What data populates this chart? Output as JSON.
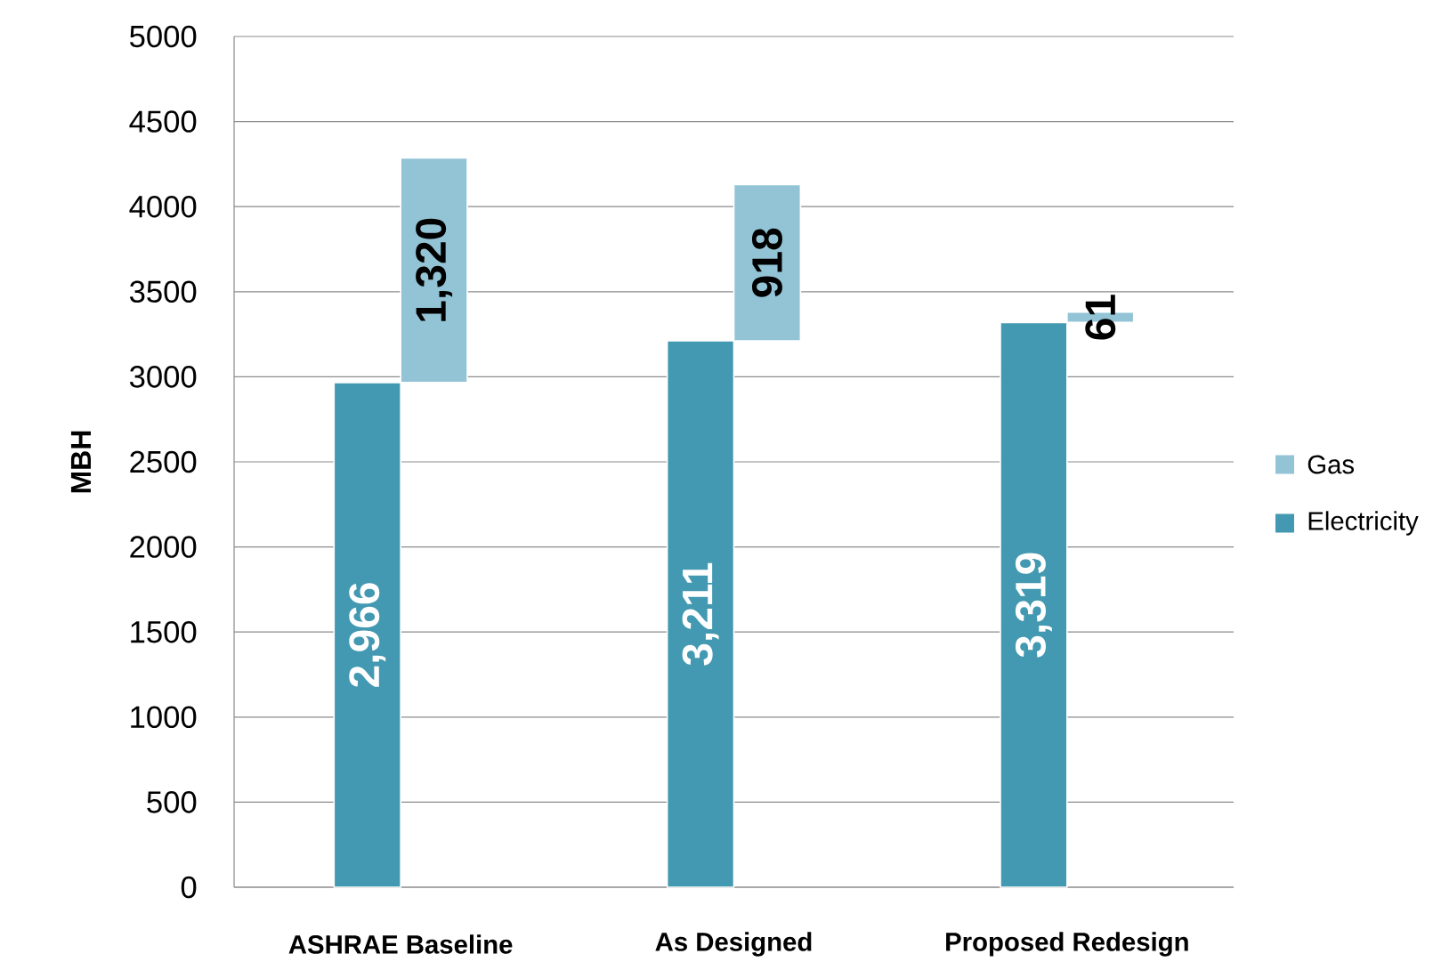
{
  "chart_data": {
    "type": "bar",
    "ylabel": "MBH",
    "categories": [
      "ASHRAE Baseline",
      "As Designed",
      "Proposed Redesign"
    ],
    "series": [
      {
        "name": "Electricity",
        "color": "#4399b1",
        "values": [
          2966,
          3211,
          3319
        ],
        "value_labels": [
          "2,966",
          "3,211",
          "3,319"
        ]
      },
      {
        "name": "Gas",
        "color": "#93c4d6",
        "values": [
          1320,
          918,
          61
        ],
        "base": [
          2966,
          3211,
          3319
        ],
        "value_labels": [
          "1,320",
          "918",
          "61"
        ]
      }
    ],
    "ylim": [
      0,
      5000
    ],
    "yticks": [
      0,
      500,
      1000,
      1500,
      2000,
      2500,
      3000,
      3500,
      4000,
      4500,
      5000
    ],
    "grid": "y",
    "legend": "right"
  }
}
